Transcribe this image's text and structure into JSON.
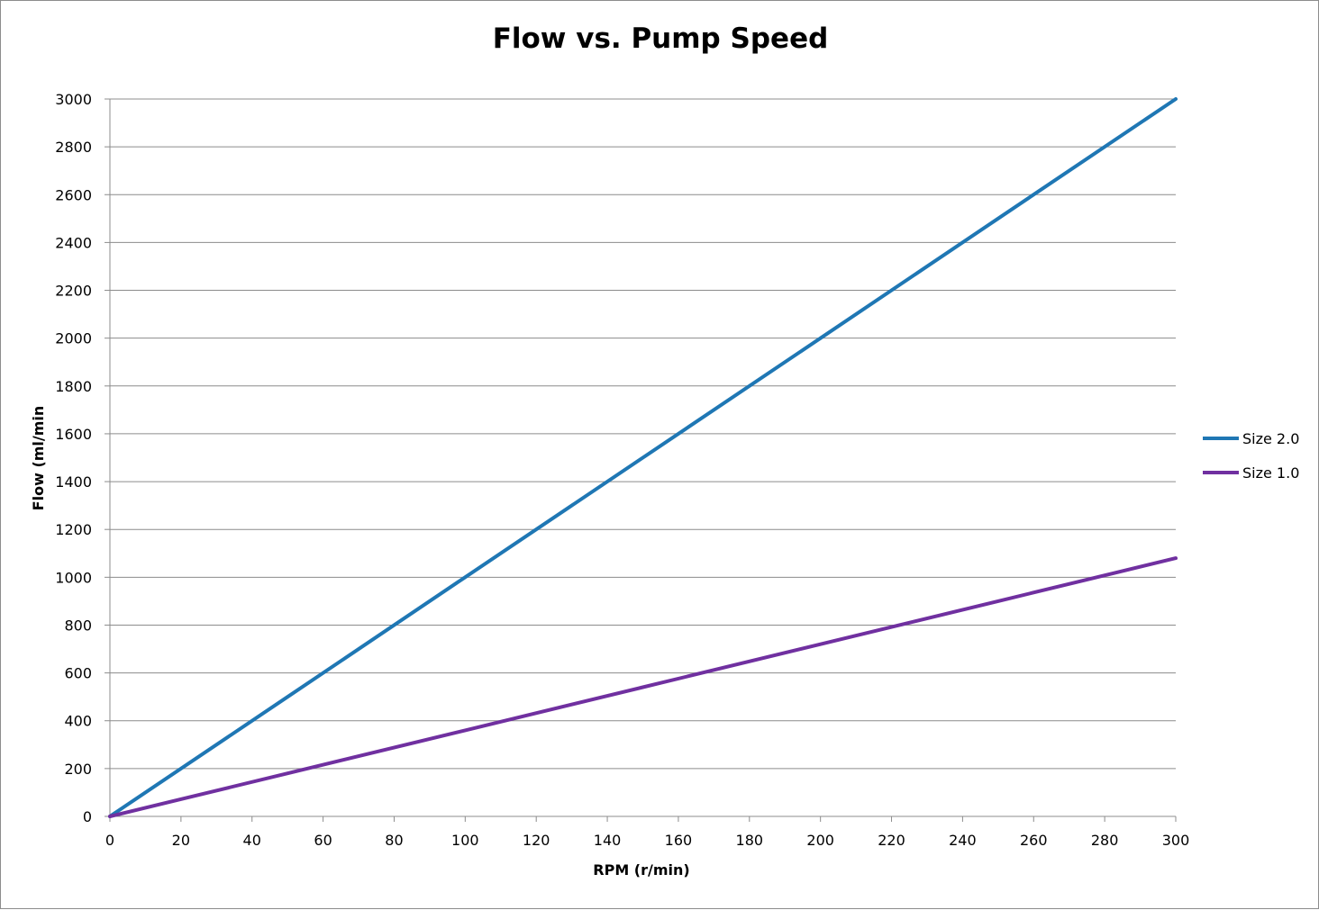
{
  "chart_data": {
    "type": "line",
    "title": "Flow vs. Pump Speed",
    "xlabel": "RPM (r/min)",
    "ylabel": "Flow (ml/min",
    "xlim": [
      0,
      300
    ],
    "ylim": [
      0,
      3000
    ],
    "x_ticks": [
      "0",
      "20",
      "40",
      "60",
      "80",
      "100",
      "120",
      "140",
      "160",
      "180",
      "200",
      "220",
      "240",
      "260",
      "280",
      "300"
    ],
    "y_ticks": [
      "0",
      "200",
      "400",
      "600",
      "800",
      "1000",
      "1200",
      "1400",
      "1600",
      "1800",
      "2000",
      "2200",
      "2400",
      "2600",
      "2800",
      "3000"
    ],
    "grid": "horizontal",
    "legend_position": "right",
    "series": [
      {
        "name": "Size 2.0",
        "color": "#1f77b4",
        "x": [
          0,
          50,
          100,
          150,
          200,
          250,
          300
        ],
        "y": [
          0,
          500,
          1000,
          1500,
          2000,
          2500,
          3000
        ]
      },
      {
        "name": "Size 1.0",
        "color": "#7030a0",
        "x": [
          0,
          50,
          100,
          150,
          200,
          250,
          300
        ],
        "y": [
          0,
          180,
          360,
          540,
          720,
          900,
          1080
        ]
      }
    ]
  }
}
